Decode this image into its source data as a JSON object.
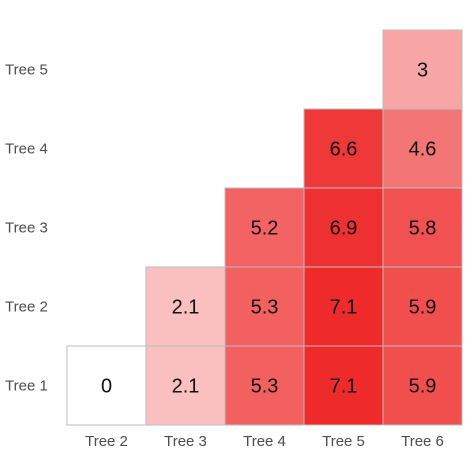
{
  "chart_data": {
    "type": "heatmap",
    "x_categories": [
      "Tree 2",
      "Tree 3",
      "Tree 4",
      "Tree 5",
      "Tree 6"
    ],
    "y_categories": [
      "Tree 1",
      "Tree 2",
      "Tree 3",
      "Tree 4",
      "Tree 5"
    ],
    "cells": [
      {
        "x": "Tree 2",
        "y": "Tree 1",
        "value": 0,
        "label": "0"
      },
      {
        "x": "Tree 3",
        "y": "Tree 1",
        "value": 2.1,
        "label": "2.1"
      },
      {
        "x": "Tree 4",
        "y": "Tree 1",
        "value": 5.3,
        "label": "5.3"
      },
      {
        "x": "Tree 5",
        "y": "Tree 1",
        "value": 7.1,
        "label": "7.1"
      },
      {
        "x": "Tree 6",
        "y": "Tree 1",
        "value": 5.9,
        "label": "5.9"
      },
      {
        "x": "Tree 3",
        "y": "Tree 2",
        "value": 2.1,
        "label": "2.1"
      },
      {
        "x": "Tree 4",
        "y": "Tree 2",
        "value": 5.3,
        "label": "5.3"
      },
      {
        "x": "Tree 5",
        "y": "Tree 2",
        "value": 7.1,
        "label": "7.1"
      },
      {
        "x": "Tree 6",
        "y": "Tree 2",
        "value": 5.9,
        "label": "5.9"
      },
      {
        "x": "Tree 4",
        "y": "Tree 3",
        "value": 5.2,
        "label": "5.2"
      },
      {
        "x": "Tree 5",
        "y": "Tree 3",
        "value": 6.9,
        "label": "6.9"
      },
      {
        "x": "Tree 6",
        "y": "Tree 3",
        "value": 5.8,
        "label": "5.8"
      },
      {
        "x": "Tree 5",
        "y": "Tree 4",
        "value": 6.6,
        "label": "6.6"
      },
      {
        "x": "Tree 6",
        "y": "Tree 4",
        "value": 4.6,
        "label": "4.6"
      },
      {
        "x": "Tree 6",
        "y": "Tree 5",
        "value": 3,
        "label": "3"
      }
    ],
    "value_range": [
      0,
      7.1
    ],
    "color_low": "#ffffff",
    "color_high": "#ee2a2a",
    "cell_border_color": "#bdbdbd",
    "title": "",
    "xlabel": "",
    "ylabel": "",
    "legend": "none",
    "grid": false
  }
}
